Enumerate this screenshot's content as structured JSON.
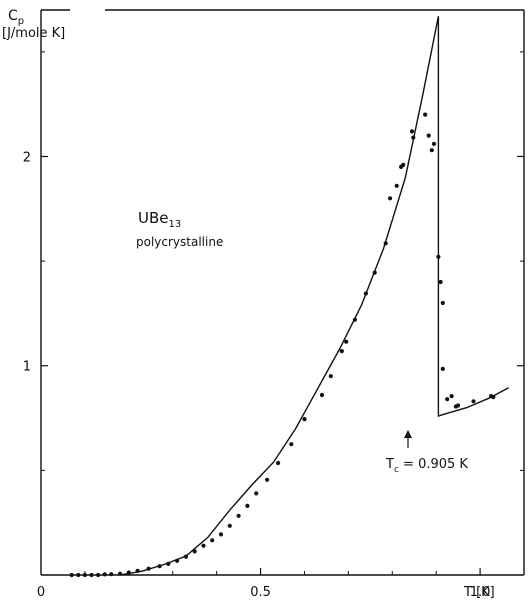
{
  "chart_data": {
    "type": "scatter",
    "title": "",
    "ylabel_symbol": "C",
    "ylabel_sub": "p",
    "ylabel_units": "[J/mole K]",
    "xlabel": "T [K]",
    "xlim": [
      0,
      1.1
    ],
    "ylim": [
      0,
      2.7
    ],
    "grid": false,
    "x_ticks": [
      {
        "value": 0,
        "label": "0"
      },
      {
        "value": 0.5,
        "label": "0.5"
      },
      {
        "value": 1.0,
        "label": "1.0"
      }
    ],
    "y_ticks": [
      {
        "value": 1,
        "label": "1"
      },
      {
        "value": 2,
        "label": "2"
      }
    ],
    "annotations": {
      "compound_main": "UBe",
      "compound_sub": "13",
      "sample": "polycrystalline",
      "tc_symbol": "T",
      "tc_sub": "c",
      "tc_value": " = 0.905 K"
    },
    "series": [
      {
        "style": "markers",
        "points": [
          [
            0.07,
            0.0
          ],
          [
            0.085,
            0.0
          ],
          [
            0.1,
            0.0
          ],
          [
            0.115,
            0.0
          ],
          [
            0.13,
            0.0
          ],
          [
            0.145,
            0.003
          ],
          [
            0.16,
            0.004
          ],
          [
            0.18,
            0.006
          ],
          [
            0.2,
            0.012
          ],
          [
            0.22,
            0.02
          ],
          [
            0.245,
            0.03
          ],
          [
            0.27,
            0.042
          ],
          [
            0.29,
            0.053
          ],
          [
            0.31,
            0.068
          ],
          [
            0.33,
            0.088
          ],
          [
            0.35,
            0.113
          ],
          [
            0.37,
            0.14
          ],
          [
            0.39,
            0.166
          ],
          [
            0.41,
            0.194
          ],
          [
            0.43,
            0.235
          ],
          [
            0.45,
            0.283
          ],
          [
            0.47,
            0.33
          ],
          [
            0.49,
            0.39
          ],
          [
            0.515,
            0.455
          ],
          [
            0.54,
            0.535
          ],
          [
            0.57,
            0.625
          ],
          [
            0.6,
            0.745
          ],
          [
            0.64,
            0.86
          ],
          [
            0.66,
            0.95
          ],
          [
            0.685,
            1.07
          ],
          [
            0.695,
            1.115
          ],
          [
            0.715,
            1.22
          ],
          [
            0.74,
            1.345
          ],
          [
            0.76,
            1.445
          ],
          [
            0.785,
            1.585
          ],
          [
            0.795,
            1.8
          ],
          [
            0.81,
            1.86
          ],
          [
            0.82,
            1.95
          ],
          [
            0.825,
            1.96
          ],
          [
            0.845,
            2.12
          ],
          [
            0.848,
            2.09
          ],
          [
            0.875,
            2.2
          ],
          [
            0.883,
            2.1
          ],
          [
            0.89,
            2.03
          ],
          [
            0.895,
            2.06
          ],
          [
            0.905,
            1.52
          ],
          [
            0.91,
            1.4
          ],
          [
            0.915,
            1.3
          ],
          [
            0.915,
            0.985
          ],
          [
            0.925,
            0.84
          ],
          [
            0.935,
            0.855
          ],
          [
            0.945,
            0.805
          ],
          [
            0.95,
            0.81
          ],
          [
            0.985,
            0.83
          ],
          [
            1.025,
            0.855
          ],
          [
            1.03,
            0.85
          ]
        ]
      },
      {
        "style": "line",
        "points": [
          [
            0.18,
            0.0
          ],
          [
            0.23,
            0.018
          ],
          [
            0.28,
            0.05
          ],
          [
            0.33,
            0.09
          ],
          [
            0.38,
            0.18
          ],
          [
            0.43,
            0.31
          ],
          [
            0.48,
            0.43
          ],
          [
            0.53,
            0.54
          ],
          [
            0.58,
            0.7
          ],
          [
            0.63,
            0.89
          ],
          [
            0.68,
            1.08
          ],
          [
            0.73,
            1.29
          ],
          [
            0.78,
            1.56
          ],
          [
            0.83,
            1.9
          ],
          [
            0.87,
            2.3
          ],
          [
            0.905,
            2.67
          ],
          [
            0.905,
            0.76
          ],
          [
            0.92,
            0.77
          ],
          [
            0.97,
            0.8
          ],
          [
            1.02,
            0.845
          ],
          [
            1.065,
            0.895
          ]
        ]
      }
    ]
  }
}
